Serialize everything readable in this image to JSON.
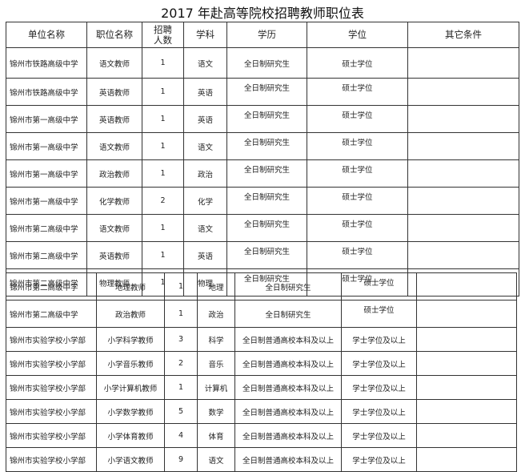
{
  "title": "2017 年赴高等院校招聘教师职位表",
  "headers": [
    "单位名称",
    "职位名称",
    "招聘人数",
    "学科",
    "学历",
    "学位",
    "其它条件"
  ],
  "rows": [
    [
      "锦州市铁路高级中学",
      "语文教师",
      "1",
      "语文",
      "全日制研究生",
      "硕士学位",
      ""
    ],
    [
      "锦州市铁路高级中学",
      "英语教师",
      "1",
      "英语",
      "全日制研究生",
      "硕士学位",
      ""
    ],
    [
      "锦州市第一高级中学",
      "英语教师",
      "1",
      "英语",
      "全日制研究生",
      "硕士学位",
      ""
    ],
    [
      "锦州市第一高级中学",
      "语文教师",
      "1",
      "语文",
      "全日制研究生",
      "硕士学位",
      ""
    ],
    [
      "锦州市第一高级中学",
      "政治教师",
      "1",
      "政治",
      "全日制研究生",
      "硕士学位",
      ""
    ],
    [
      "锦州市第一高级中学",
      "化学教师",
      "2",
      "化学",
      "全日制研究生",
      "硕士学位",
      ""
    ],
    [
      "锦州市第二高级中学",
      "语文教师",
      "1",
      "语文",
      "全日制研究生",
      "硕士学位",
      ""
    ],
    [
      "锦州市第二高级中学",
      "英语教师",
      "1",
      "英语",
      "全日制研究生",
      "硕士学位",
      ""
    ],
    [
      "锦州市第二高级中学",
      "物理教师",
      "1",
      "物理",
      "全日制研究生",
      "硕士学位",
      ""
    ],
    [
      "锦州市第二高级中学",
      "地理教师",
      "1",
      "地理",
      "全日制研究生",
      "硕士学位",
      ""
    ],
    [
      "锦州市第二高级中学",
      "政治教师",
      "1",
      "政治",
      "全日制研究生",
      "硕士学位",
      ""
    ],
    [
      "锦州市实验学校小学部",
      "小学科学教师",
      "3",
      "科学",
      "全日制普通高校本科及以上",
      "学士学位及以上",
      ""
    ],
    [
      "锦州市实验学校小学部",
      "小学音乐教师",
      "2",
      "音乐",
      "全日制普通高校本科及以上",
      "学士学位及以上",
      ""
    ],
    [
      "锦州市实验学校小学部",
      "小学计算机教师",
      "1",
      "计算机",
      "全日制普通高校本科及以上",
      "学士学位及以上",
      ""
    ],
    [
      "锦州市实验学校小学部",
      "小学数学教师",
      "5",
      "数学",
      "全日制普通高校本科及以上",
      "学士学位及以上",
      ""
    ],
    [
      "锦州市实验学校小学部",
      "小学体育教师",
      "4",
      "体育",
      "全日制普通高校本科及以上",
      "学士学位及以上",
      ""
    ],
    [
      "锦州市实验学校小学部",
      "小学语文教师",
      "9",
      "语文",
      "全日制普通高校本科及以上",
      "学士学位及以上",
      ""
    ]
  ]
}
